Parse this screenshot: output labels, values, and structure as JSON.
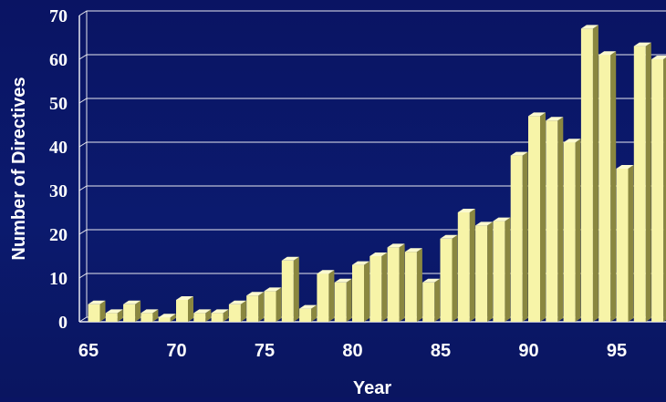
{
  "chart_data": {
    "type": "bar",
    "title": "",
    "xlabel": "Year",
    "ylabel": "Number of Directives",
    "x_tick_labels": [
      "65",
      "70",
      "75",
      "80",
      "85",
      "90",
      "95"
    ],
    "y_tick_labels": [
      "0",
      "10",
      "20",
      "30",
      "40",
      "50",
      "60",
      "70"
    ],
    "ylim": [
      0,
      70
    ],
    "grid": true,
    "legend": "none",
    "categories": [
      "65",
      "66",
      "67",
      "68",
      "69",
      "70",
      "71",
      "72",
      "73",
      "74",
      "75",
      "76",
      "77",
      "78",
      "79",
      "80",
      "81",
      "82",
      "83",
      "84",
      "85",
      "86",
      "87",
      "88",
      "89",
      "90",
      "91",
      "92",
      "93",
      "94",
      "95",
      "96",
      "97"
    ],
    "values": [
      4,
      2,
      4,
      2,
      1,
      5,
      2,
      2,
      4,
      6,
      7,
      14,
      3,
      11,
      9,
      13,
      15,
      17,
      16,
      9,
      19,
      25,
      22,
      23,
      38,
      47,
      46,
      41,
      67,
      61,
      35,
      63,
      60
    ],
    "colors": {
      "bar_front": "#f7f4a8",
      "bar_side": "#8a8740",
      "bar_top": "#fbfad0",
      "grid": "#e8e8f0",
      "text": "#ffffff"
    }
  }
}
